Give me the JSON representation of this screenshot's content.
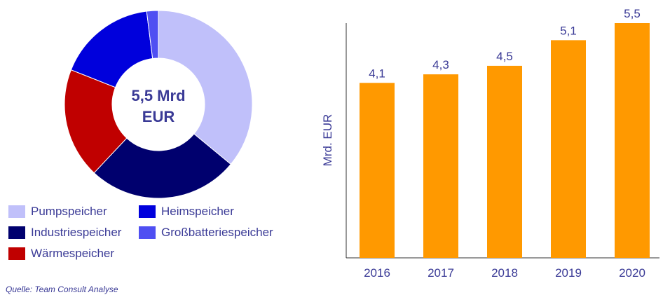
{
  "chart_data": [
    {
      "type": "pie",
      "center_label_line1": "5,5 Mrd",
      "center_label_line2": "EUR",
      "series": [
        {
          "name": "Pumpspeicher",
          "value": 36,
          "color": "#c0c0fa"
        },
        {
          "name": "Industriespeicher",
          "value": 26,
          "color": "#00006e"
        },
        {
          "name": "Wärmespeicher",
          "value": 19,
          "color": "#c00000"
        },
        {
          "name": "Heimspeicher",
          "value": 17,
          "color": "#0000dc"
        },
        {
          "name": "Großbatteriespeicher",
          "value": 2,
          "color": "#4f4ff2"
        }
      ]
    },
    {
      "type": "bar",
      "categories": [
        "2016",
        "2017",
        "2018",
        "2019",
        "2020"
      ],
      "values": [
        4.1,
        4.3,
        4.5,
        5.1,
        5.5
      ],
      "value_labels": [
        "4,1",
        "4,3",
        "4,5",
        "5,1",
        "5,5"
      ],
      "ylabel": "Mrd. EUR",
      "ylim": [
        0,
        5.5
      ],
      "bar_color": "#ff9900",
      "grid": false
    }
  ],
  "source_note": "Quelle: Team Consult Analyse",
  "colors": {
    "text": "#3a3a96",
    "axis": "#333333"
  }
}
